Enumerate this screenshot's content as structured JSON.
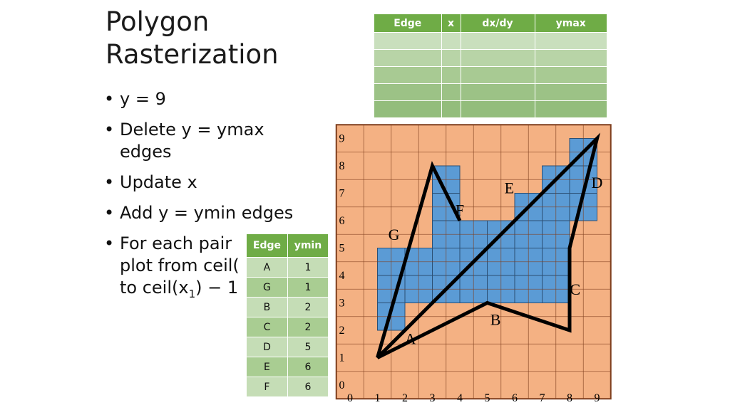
{
  "slide": {
    "title": [
      "Polygon",
      "Rasterization"
    ],
    "bullets": [
      {
        "lines": [
          "y = 9"
        ]
      },
      {
        "lines": [
          "Delete y = ymax",
          "edges"
        ]
      },
      {
        "lines": [
          "Update x"
        ]
      },
      {
        "lines": [
          "Add y = ymin edges"
        ]
      },
      {
        "lines": [
          "For each pair",
          "plot from ceil(",
          "to ceil(x"
        ],
        "sub": "1",
        "tail": ") − 1"
      }
    ]
  },
  "active_edge_table": {
    "headers": [
      "Edge",
      "x",
      "dx/dy",
      "ymax"
    ],
    "rows": 5
  },
  "edge_table": {
    "headers": [
      "Edge",
      "ymin"
    ],
    "rows": [
      {
        "edge": "A",
        "ymin": "1"
      },
      {
        "edge": "G",
        "ymin": "1"
      },
      {
        "edge": "B",
        "ymin": "2"
      },
      {
        "edge": "C",
        "ymin": "2"
      },
      {
        "edge": "D",
        "ymin": "5"
      },
      {
        "edge": "E",
        "ymin": "6"
      },
      {
        "edge": "F",
        "ymin": "6"
      }
    ]
  },
  "chart_data": {
    "type": "grid",
    "x_ticks": [
      "0",
      "1",
      "2",
      "3",
      "4",
      "5",
      "6",
      "7",
      "8",
      "9"
    ],
    "y_ticks": [
      "0",
      "1",
      "2",
      "3",
      "4",
      "5",
      "6",
      "7",
      "8",
      "9"
    ],
    "colors": {
      "background": "#f4b183",
      "filled": "#5b9bd5",
      "polygon": "#000000",
      "grid": "#7f3f1e"
    },
    "polygon": [
      [
        1,
        1
      ],
      [
        5,
        3
      ],
      [
        8,
        2
      ],
      [
        8,
        5
      ],
      [
        9,
        9
      ],
      [
        6,
        6
      ]
    ],
    "open_path": [
      [
        1,
        1
      ],
      [
        3,
        8
      ],
      [
        4,
        6
      ]
    ],
    "filled_pixels": [
      [
        1,
        2
      ],
      [
        1,
        3
      ],
      [
        1,
        4
      ],
      [
        2,
        3
      ],
      [
        2,
        4
      ],
      [
        3,
        3
      ],
      [
        3,
        4
      ],
      [
        3,
        5
      ],
      [
        3,
        6
      ],
      [
        3,
        7
      ],
      [
        4,
        3
      ],
      [
        4,
        4
      ],
      [
        4,
        5
      ],
      [
        5,
        3
      ],
      [
        5,
        4
      ],
      [
        5,
        5
      ],
      [
        6,
        3
      ],
      [
        6,
        4
      ],
      [
        6,
        5
      ],
      [
        6,
        6
      ],
      [
        7,
        3
      ],
      [
        7,
        4
      ],
      [
        7,
        5
      ],
      [
        7,
        6
      ],
      [
        7,
        7
      ],
      [
        8,
        6
      ],
      [
        8,
        7
      ],
      [
        8,
        8
      ]
    ],
    "edge_labels": [
      {
        "label": "A",
        "x": 2.2,
        "y": 1.5
      },
      {
        "label": "B",
        "x": 5.3,
        "y": 2.2
      },
      {
        "label": "C",
        "x": 8.2,
        "y": 3.3
      },
      {
        "label": "D",
        "x": 9.0,
        "y": 7.2
      },
      {
        "label": "E",
        "x": 5.8,
        "y": 7.0
      },
      {
        "label": "F",
        "x": 4.0,
        "y": 6.2
      },
      {
        "label": "G",
        "x": 1.6,
        "y": 5.3
      }
    ]
  }
}
